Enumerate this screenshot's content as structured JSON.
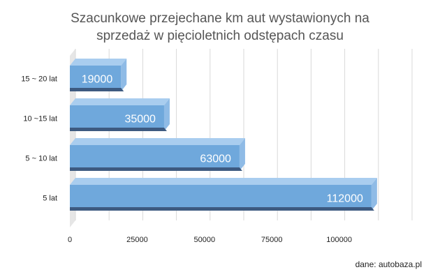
{
  "title_lines": [
    "Szacunkowe przejechane km aut wystawionych na",
    "sprzedaż w pięcioletnich odstępach czasu"
  ],
  "source": "dane: autobaza.pl",
  "colors": {
    "bar_front": "#6fa8dc",
    "bar_top": "#a9cdef",
    "bar_side": "#8fbbe6",
    "bar_bottom": "#3d5a80",
    "grid": "#d9d9d9",
    "axis_wall": "#e6e6e6",
    "label_on_bar": "#ffffff"
  },
  "chart_data": {
    "type": "bar",
    "orientation": "horizontal",
    "style": "3d",
    "title": "Szacunkowe przejechane km aut wystawionych na sprzedaż w pięcioletnich odstępach czasu",
    "categories": [
      "15 ~ 20 lat",
      "10 ~15 lat",
      "5 ~ 10 lat",
      "5 lat"
    ],
    "values": [
      19000,
      35000,
      63000,
      112000
    ],
    "data_labels": [
      "19000",
      "35000",
      "63000",
      "112000"
    ],
    "x_ticks": [
      0,
      25000,
      50000,
      75000,
      100000
    ],
    "x_tick_labels": [
      "0",
      "25000",
      "50000",
      "75000",
      "100000"
    ],
    "xlim": [
      0,
      125000
    ],
    "grid": true,
    "legend": "none"
  }
}
